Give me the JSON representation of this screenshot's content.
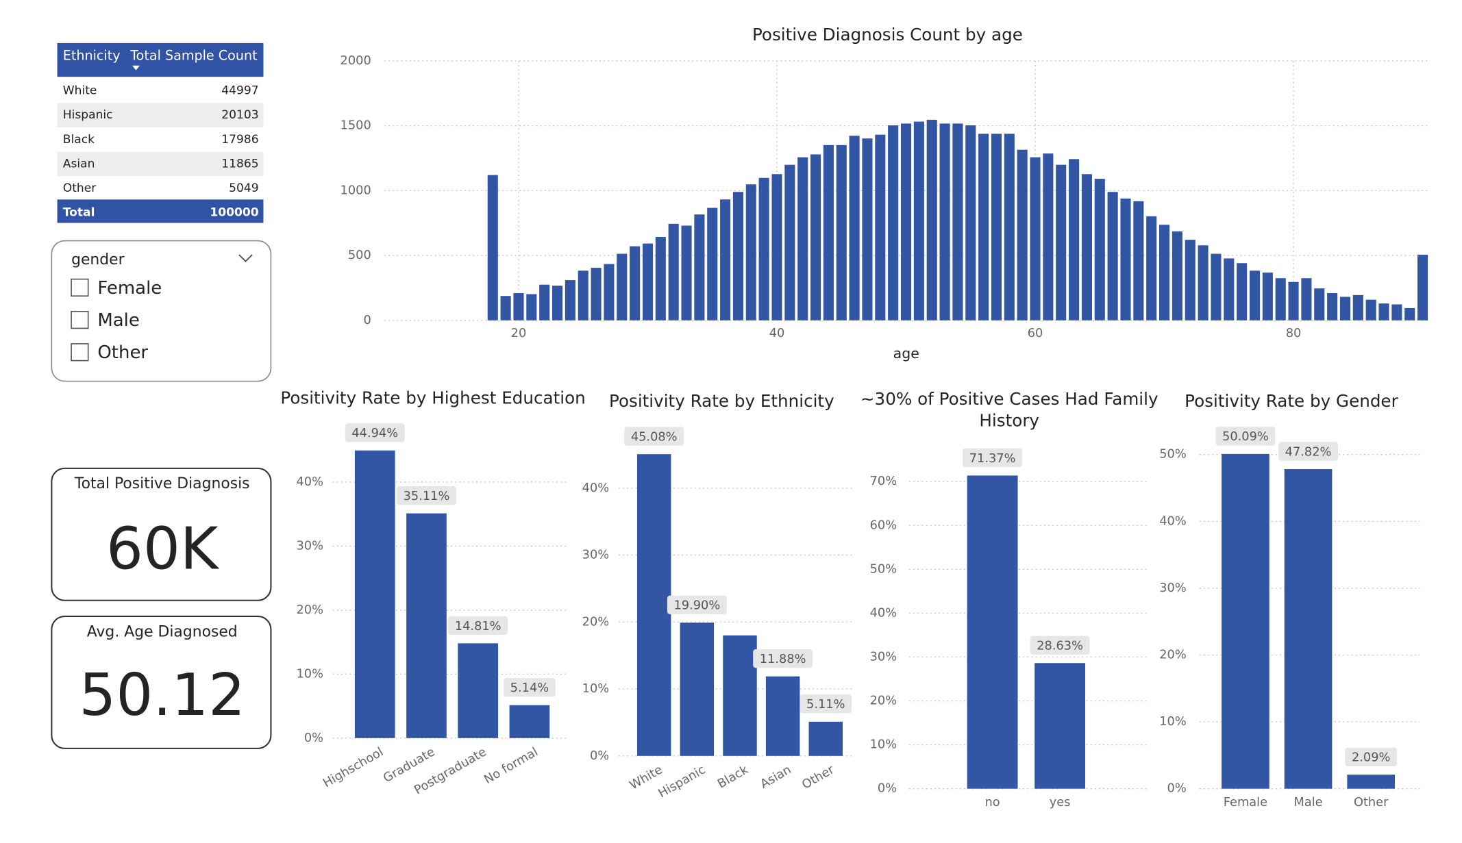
{
  "table": {
    "columns": [
      "Ethnicity",
      "Total Sample Count"
    ],
    "rows": [
      [
        "White",
        "44997"
      ],
      [
        "Hispanic",
        "20103"
      ],
      [
        "Black",
        "17986"
      ],
      [
        "Asian",
        "11865"
      ],
      [
        "Other",
        "5049"
      ]
    ],
    "total": [
      "Total",
      "100000"
    ]
  },
  "slicer": {
    "title": "gender",
    "options": [
      "Female",
      "Male",
      "Other"
    ]
  },
  "cards": [
    {
      "title": "Total Positive Diagnosis",
      "value": "60K"
    },
    {
      "title": "Avg. Age Diagnosed",
      "value": "50.12"
    }
  ],
  "chart_data": [
    {
      "type": "bar",
      "title": "Positive Diagnosis Count by age",
      "x_label": "age",
      "color": "#3255a4",
      "grid": true,
      "x": [
        18,
        19,
        20,
        21,
        22,
        23,
        24,
        25,
        26,
        27,
        28,
        29,
        30,
        31,
        32,
        33,
        34,
        35,
        36,
        37,
        38,
        39,
        40,
        41,
        42,
        43,
        44,
        45,
        46,
        47,
        48,
        49,
        50,
        51,
        52,
        53,
        54,
        55,
        56,
        57,
        58,
        59,
        60,
        61,
        62,
        63,
        64,
        65,
        66,
        67,
        68,
        69,
        70,
        71,
        72,
        73,
        74,
        75,
        76,
        77,
        78,
        79,
        80,
        81,
        82,
        83,
        84,
        85,
        86,
        87,
        88,
        89,
        90
      ],
      "values": [
        1120,
        188,
        210,
        202,
        275,
        267,
        310,
        383,
        405,
        434,
        513,
        571,
        592,
        643,
        744,
        730,
        816,
        867,
        932,
        990,
        1048,
        1098,
        1127,
        1199,
        1257,
        1279,
        1351,
        1351,
        1423,
        1402,
        1431,
        1503,
        1517,
        1532,
        1546,
        1517,
        1517,
        1503,
        1438,
        1438,
        1438,
        1315,
        1257,
        1286,
        1199,
        1243,
        1127,
        1091,
        990,
        939,
        918,
        802,
        737,
        686,
        621,
        578,
        513,
        477,
        441,
        383,
        368,
        325,
        296,
        325,
        246,
        210,
        181,
        195,
        159,
        130,
        123,
        94,
        506
      ],
      "xlim": [
        9.6,
        90.5
      ],
      "xticks": [
        20,
        40,
        60,
        80
      ],
      "ylim": [
        0,
        2000
      ],
      "yticks": [
        0,
        500,
        1000,
        1500,
        2000
      ]
    },
    {
      "type": "bar",
      "title": "Positivity Rate by Highest Education",
      "color": "#3255a4",
      "grid": true,
      "categories": [
        "Highschool",
        "Graduate",
        "Postgraduate",
        "No formal"
      ],
      "values": [
        44.94,
        35.11,
        14.81,
        5.14
      ],
      "value_labels": [
        "44.94%",
        "35.11%",
        "14.81%",
        "5.14%"
      ],
      "ylim": [
        0,
        48
      ],
      "yticks": [
        {
          "value": 0,
          "label": "0%"
        },
        {
          "value": 10,
          "label": "10%"
        },
        {
          "value": 20,
          "label": "20%"
        },
        {
          "value": 30,
          "label": "30%"
        },
        {
          "value": 40,
          "label": "40%"
        }
      ]
    },
    {
      "type": "bar",
      "title": "Positivity Rate by Ethnicity",
      "color": "#3255a4",
      "grid": true,
      "categories": [
        "White",
        "Hispanic",
        "Black",
        "Asian",
        "Other"
      ],
      "values": [
        45.08,
        19.9,
        18.0,
        11.88,
        5.11
      ],
      "value_labels": [
        "45.08%",
        "19.90%",
        null,
        "11.88%",
        "5.11%"
      ],
      "ylim": [
        0,
        48
      ],
      "yticks": [
        {
          "value": 0,
          "label": "0%"
        },
        {
          "value": 10,
          "label": "10%"
        },
        {
          "value": 20,
          "label": "20%"
        },
        {
          "value": 30,
          "label": "30%"
        },
        {
          "value": 40,
          "label": "40%"
        }
      ]
    },
    {
      "type": "bar",
      "title": "~30% of Positive Cases Had Family History",
      "color": "#3255a4",
      "grid": true,
      "categories": [
        "no",
        "yes"
      ],
      "values": [
        71.37,
        28.63
      ],
      "value_labels": [
        "71.37%",
        "28.63%"
      ],
      "ylim": [
        0,
        76
      ],
      "yticks": [
        {
          "value": 0,
          "label": "0%"
        },
        {
          "value": 10,
          "label": "10%"
        },
        {
          "value": 20,
          "label": "20%"
        },
        {
          "value": 30,
          "label": "30%"
        },
        {
          "value": 40,
          "label": "40%"
        },
        {
          "value": 50,
          "label": "50%"
        },
        {
          "value": 60,
          "label": "60%"
        },
        {
          "value": 70,
          "label": "70%"
        }
      ]
    },
    {
      "type": "bar",
      "title": "Positivity Rate by Gender",
      "color": "#3255a4",
      "grid": true,
      "categories": [
        "Female",
        "Male",
        "Other"
      ],
      "values": [
        50.09,
        47.82,
        2.09
      ],
      "value_labels": [
        "50.09%",
        "47.82%",
        "2.09%"
      ],
      "ylim": [
        0,
        52
      ],
      "yticks": [
        {
          "value": 0,
          "label": "0%"
        },
        {
          "value": 10,
          "label": "10%"
        },
        {
          "value": 20,
          "label": "20%"
        },
        {
          "value": 30,
          "label": "30%"
        },
        {
          "value": 40,
          "label": "40%"
        },
        {
          "value": 50,
          "label": "50%"
        }
      ]
    }
  ]
}
